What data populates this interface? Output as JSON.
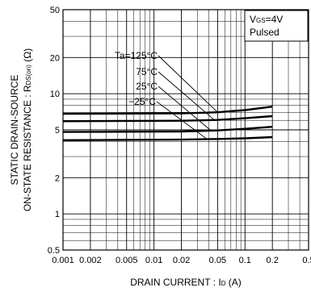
{
  "chart_data": {
    "type": "line",
    "title": "",
    "xlabel_parts": [
      "DRAIN  CURRENT : I",
      "D",
      " (A)"
    ],
    "ylabel_line1_parts": [
      "STATIC DRAIN-SOURCE"
    ],
    "ylabel_line2_parts": [
      "ON-STATE  RESISTANCE : R",
      "DS(on)",
      " (Ω)"
    ],
    "xscale": "log",
    "yscale": "log",
    "xlim": [
      0.001,
      0.5
    ],
    "ylim": [
      0.5,
      50
    ],
    "x_ticks": [
      {
        "v": 0.001,
        "label": "0.001"
      },
      {
        "v": 0.002,
        "label": "0.002"
      },
      {
        "v": 0.005,
        "label": "0.005"
      },
      {
        "v": 0.01,
        "label": "0.01"
      },
      {
        "v": 0.02,
        "label": "0.02"
      },
      {
        "v": 0.05,
        "label": "0.05"
      },
      {
        "v": 0.1,
        "label": "0.1"
      },
      {
        "v": 0.2,
        "label": "0.2"
      },
      {
        "v": 0.5,
        "label": "0.5"
      }
    ],
    "y_ticks": [
      {
        "v": 0.5,
        "label": "0.5"
      },
      {
        "v": 1,
        "label": "1"
      },
      {
        "v": 2,
        "label": "2"
      },
      {
        "v": 5,
        "label": "5"
      },
      {
        "v": 10,
        "label": "10"
      },
      {
        "v": 20,
        "label": "20"
      },
      {
        "v": 50,
        "label": "50"
      }
    ],
    "grid": true,
    "condition_box": {
      "line1_parts": [
        "V",
        "GS",
        "=4V"
      ],
      "line2": "Pulsed"
    },
    "series": [
      {
        "name": "Ta=125°C",
        "x": [
          0.001,
          0.02,
          0.05,
          0.1,
          0.2
        ],
        "values": [
          6.8,
          6.85,
          7.0,
          7.3,
          7.8
        ]
      },
      {
        "name": "75°C",
        "x": [
          0.001,
          0.02,
          0.05,
          0.1,
          0.2
        ],
        "values": [
          5.9,
          5.95,
          6.05,
          6.25,
          6.5
        ]
      },
      {
        "name": "25°C",
        "x": [
          0.001,
          0.02,
          0.05,
          0.1,
          0.2
        ],
        "values": [
          4.8,
          4.85,
          4.95,
          5.1,
          5.3
        ]
      },
      {
        "name": "−25°C",
        "x": [
          0.001,
          0.02,
          0.05,
          0.1,
          0.2
        ],
        "values": [
          4.1,
          4.15,
          4.2,
          4.25,
          4.35
        ]
      }
    ]
  }
}
